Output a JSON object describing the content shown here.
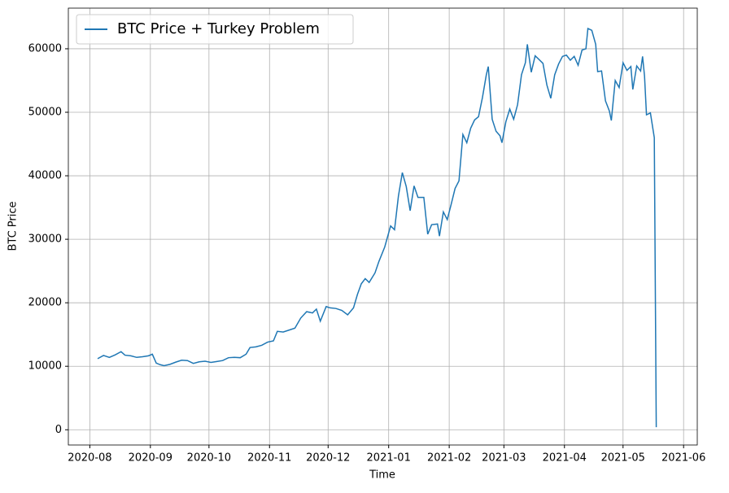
{
  "chart_data": {
    "type": "line",
    "xlabel": "Time",
    "ylabel": "BTC Price",
    "x": [
      "2020-08-05",
      "2020-08-08",
      "2020-08-11",
      "2020-08-14",
      "2020-08-17",
      "2020-08-19",
      "2020-08-22",
      "2020-08-25",
      "2020-08-28",
      "2020-08-31",
      "2020-09-02",
      "2020-09-04",
      "2020-09-06",
      "2020-09-08",
      "2020-09-11",
      "2020-09-14",
      "2020-09-17",
      "2020-09-20",
      "2020-09-23",
      "2020-09-26",
      "2020-09-29",
      "2020-10-02",
      "2020-10-05",
      "2020-10-08",
      "2020-10-11",
      "2020-10-14",
      "2020-10-17",
      "2020-10-20",
      "2020-10-22",
      "2020-10-25",
      "2020-10-28",
      "2020-10-31",
      "2020-11-03",
      "2020-11-05",
      "2020-11-08",
      "2020-11-11",
      "2020-11-14",
      "2020-11-17",
      "2020-11-20",
      "2020-11-23",
      "2020-11-25",
      "2020-11-27",
      "2020-11-30",
      "2020-12-02",
      "2020-12-05",
      "2020-12-08",
      "2020-12-11",
      "2020-12-14",
      "2020-12-16",
      "2020-12-18",
      "2020-12-20",
      "2020-12-22",
      "2020-12-25",
      "2020-12-27",
      "2020-12-30",
      "2021-01-02",
      "2021-01-04",
      "2021-01-06",
      "2021-01-08",
      "2021-01-10",
      "2021-01-12",
      "2021-01-14",
      "2021-01-16",
      "2021-01-19",
      "2021-01-21",
      "2021-01-23",
      "2021-01-26",
      "2021-01-27",
      "2021-01-29",
      "2021-01-31",
      "2021-02-02",
      "2021-02-04",
      "2021-02-06",
      "2021-02-08",
      "2021-02-10",
      "2021-02-12",
      "2021-02-14",
      "2021-02-16",
      "2021-02-18",
      "2021-02-20",
      "2021-02-21",
      "2021-02-23",
      "2021-02-25",
      "2021-02-27",
      "2021-02-28",
      "2021-03-02",
      "2021-03-04",
      "2021-03-06",
      "2021-03-08",
      "2021-03-10",
      "2021-03-12",
      "2021-03-13",
      "2021-03-15",
      "2021-03-17",
      "2021-03-19",
      "2021-03-21",
      "2021-03-23",
      "2021-03-25",
      "2021-03-27",
      "2021-03-29",
      "2021-03-31",
      "2021-04-02",
      "2021-04-04",
      "2021-04-06",
      "2021-04-08",
      "2021-04-10",
      "2021-04-12",
      "2021-04-13",
      "2021-04-15",
      "2021-04-17",
      "2021-04-18",
      "2021-04-20",
      "2021-04-22",
      "2021-04-24",
      "2021-04-25",
      "2021-04-27",
      "2021-04-29",
      "2021-05-01",
      "2021-05-03",
      "2021-05-05",
      "2021-05-06",
      "2021-05-08",
      "2021-05-10",
      "2021-05-11",
      "2021-05-12",
      "2021-05-13",
      "2021-05-15",
      "2021-05-17",
      "2021-05-18"
    ],
    "series": [
      {
        "name": "BTC Price + Turkey Problem",
        "color": "#1f77b4",
        "values": [
          11200,
          11700,
          11400,
          11800,
          12300,
          11750,
          11650,
          11400,
          11500,
          11650,
          11900,
          10500,
          10250,
          10100,
          10300,
          10650,
          10950,
          10900,
          10450,
          10700,
          10800,
          10600,
          10750,
          10900,
          11350,
          11400,
          11350,
          11900,
          12950,
          13050,
          13300,
          13800,
          14000,
          15500,
          15400,
          15700,
          16000,
          17600,
          18600,
          18400,
          19000,
          17100,
          19400,
          19200,
          19100,
          18800,
          18100,
          19200,
          21300,
          23000,
          23800,
          23200,
          24700,
          26500,
          28800,
          32100,
          31500,
          36800,
          40500,
          38300,
          34500,
          38400,
          36600,
          36600,
          30800,
          32300,
          32400,
          30500,
          34300,
          33100,
          35500,
          38000,
          39200,
          46500,
          45200,
          47500,
          48800,
          49300,
          52300,
          55900,
          57200,
          48900,
          47000,
          46300,
          45200,
          48500,
          50500,
          48900,
          51200,
          55900,
          57800,
          60700,
          56300,
          58900,
          58300,
          57700,
          54300,
          52200,
          55900,
          57600,
          58800,
          59000,
          58200,
          58800,
          57400,
          59800,
          60000,
          63200,
          62900,
          60700,
          56400,
          56500,
          51800,
          50200,
          48700,
          55000,
          53900,
          57800,
          56600,
          57200,
          53600,
          57300,
          56500,
          58800,
          55700,
          49600,
          49900,
          46000,
          400
        ]
      }
    ],
    "xlim": [
      "2020-07-21",
      "2021-06-08"
    ],
    "xticks": [
      "2020-08",
      "2020-09",
      "2020-10",
      "2020-11",
      "2020-12",
      "2021-01",
      "2021-02",
      "2021-03",
      "2021-04",
      "2021-05",
      "2021-06"
    ],
    "ylim": [
      -2400,
      66400
    ],
    "yticks": [
      0,
      10000,
      20000,
      30000,
      40000,
      50000,
      60000
    ],
    "grid": true,
    "legend": "upper-left"
  }
}
